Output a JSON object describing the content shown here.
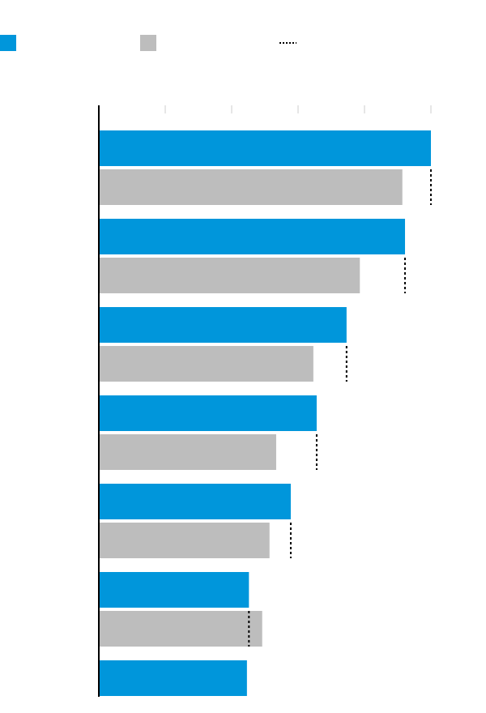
{
  "chart_data": {
    "type": "bar",
    "orientation": "horizontal",
    "categories": [
      null,
      null,
      null,
      null,
      null,
      null,
      null
    ],
    "series": [
      {
        "color": "#0096db",
        "style": "bar",
        "values": [
          5.0,
          4.61,
          3.73,
          3.28,
          2.89,
          2.26,
          2.23
        ]
      },
      {
        "color": "#bdbdbd",
        "style": "bar",
        "values": [
          4.57,
          3.93,
          3.23,
          2.67,
          2.57,
          2.46,
          null
        ]
      },
      {
        "color": "#000000",
        "style": "dotted",
        "values": [
          5.0,
          4.61,
          3.73,
          3.28,
          2.89,
          2.26,
          null
        ]
      }
    ],
    "xlim": [
      0,
      5
    ],
    "xticks": [
      0,
      1,
      2,
      3,
      4,
      5
    ]
  }
}
